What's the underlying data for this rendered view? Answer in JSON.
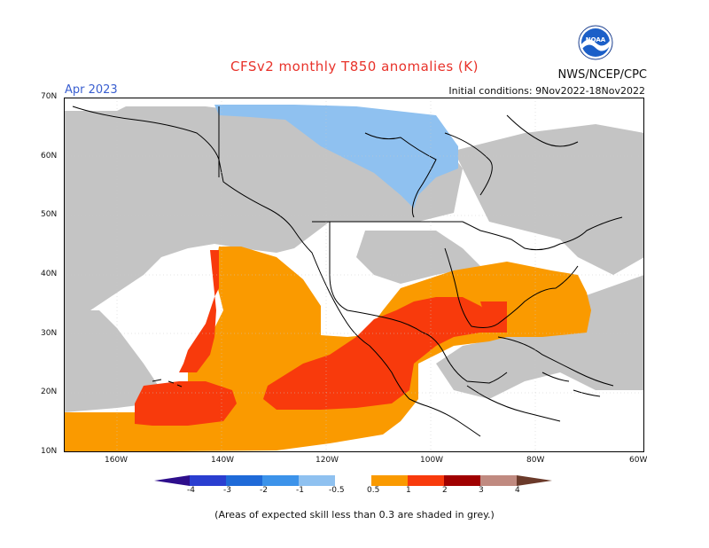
{
  "title": "CFSv2 monthly T850 anomalies (K)",
  "forecast_month": "Apr 2023",
  "initial_conditions": "Initial conditions: 9Nov2022-18Nov2022",
  "organization": "NWS/NCEP/CPC",
  "logo_text": "NOAA",
  "footnote": "(Areas of expected skill less than 0.3 are shaded in grey.)",
  "colors": {
    "skill_grey": "#c4c4c4",
    "neg_0_5_1": "#8fc1f0",
    "pos_0_5_1": "#fa9a00",
    "pos_1_2": "#f83a0c",
    "pos_2_3": "#a00000",
    "coast": "#000000"
  },
  "map": {
    "lat_labels": [
      "70N",
      "60N",
      "50N",
      "40N",
      "30N",
      "20N",
      "10N"
    ],
    "lon_labels": [
      "160W",
      "140W",
      "120W",
      "100W",
      "80W",
      "60W"
    ]
  },
  "colorbar": {
    "labels": [
      "-4",
      "-3",
      "-2",
      "-1",
      "-0.5",
      "0.5",
      "1",
      "2",
      "3",
      "4"
    ],
    "colors": [
      "#2e0e8c",
      "#2a3ed0",
      "#1f6ad8",
      "#3c93ea",
      "#8fc1f0",
      "#ffffff",
      "#fa9a00",
      "#f83a0c",
      "#a00000",
      "#c08a80",
      "#6b3a2a"
    ]
  }
}
